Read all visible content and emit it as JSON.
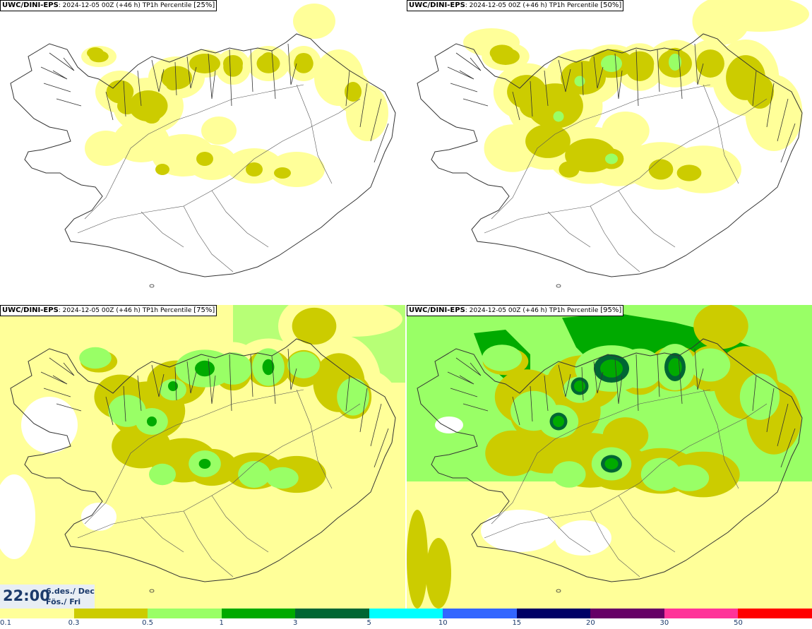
{
  "panels": [
    {
      "source": "UWC/DINI-EPS",
      "info": "2024-12-05 00Z (+46 h) TP1h Percentile",
      "percentile": "[25%]",
      "level": 0
    },
    {
      "source": "UWC/DINI-EPS",
      "info": "2024-12-05 00Z (+46 h) TP1h Percentile",
      "percentile": "[50%]",
      "level": 1
    },
    {
      "source": "UWC/DINI-EPS",
      "info": "2024-12-05 00Z (+46 h) TP1h Percentile",
      "percentile": "[75%]",
      "level": 2
    },
    {
      "source": "UWC/DINI-EPS",
      "info": "2024-12-05 00Z (+46 h) TP1h Percentile",
      "percentile": "[95%]",
      "level": 3
    }
  ],
  "valid_time": {
    "time": "22:00",
    "date_line1": "6.des./ Dec",
    "date_line2": "Fös./ Fri"
  },
  "legend": {
    "ticks": [
      "0.1",
      "0.3",
      "0.5",
      "1",
      "3",
      "5",
      "10",
      "15",
      "20",
      "30",
      "50"
    ],
    "colors": [
      "#ffff99",
      "#cccc00",
      "#99ff66",
      "#00aa00",
      "#006633",
      "#00ffff",
      "#3366ff",
      "#000066",
      "#660066",
      "#ff3399",
      "#ff0000"
    ]
  },
  "colors": {
    "light_yellow": "#ffff99",
    "olive": "#cccc00",
    "light_green": "#99ff66",
    "green": "#00aa00",
    "dark_green": "#006633",
    "coastline": "#333333"
  }
}
